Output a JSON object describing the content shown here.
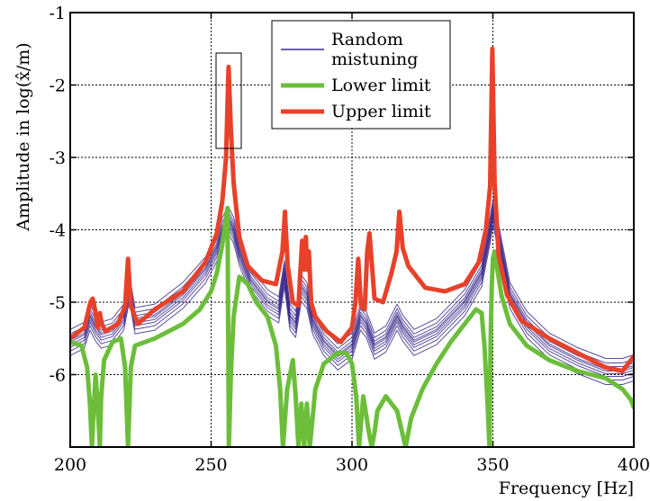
{
  "chart_data": {
    "type": "line",
    "xlabel": "Frequency [Hz]",
    "ylabel": "Amplitude in log(x̂/m)",
    "xlim": [
      200,
      400
    ],
    "ylim": [
      -7,
      -1
    ],
    "x_ticks": [
      "200",
      "250",
      "300",
      "350",
      "400"
    ],
    "y_ticks": [
      "-1",
      "-2",
      "-3",
      "-4",
      "-5",
      "-6"
    ],
    "grid": true,
    "legend_position": "top-right",
    "colors": {
      "random": "#3b2a8c",
      "lower": "#6cbe3a",
      "upper": "#e8412a"
    },
    "series": [
      {
        "name": "Random mistuning",
        "key": "random",
        "style": "thin-band",
        "x": [
          200,
          205,
          207,
          209,
          211,
          215,
          219,
          221,
          223,
          230,
          240,
          248,
          252,
          254,
          256,
          258,
          260,
          264,
          270,
          274,
          276,
          278,
          280,
          282,
          284,
          286,
          290,
          295,
          300,
          303,
          305,
          308,
          312,
          316,
          318,
          322,
          330,
          340,
          346,
          349,
          350,
          352,
          356,
          362,
          370,
          380,
          390,
          396,
          400
        ],
        "values": [
          -5.55,
          -5.45,
          -5.2,
          -5.35,
          -5.45,
          -5.4,
          -5.2,
          -4.8,
          -5.25,
          -5.2,
          -4.9,
          -4.55,
          -4.25,
          -4.0,
          -3.85,
          -4.0,
          -4.3,
          -4.7,
          -5.0,
          -5.1,
          -4.6,
          -5.2,
          -5.3,
          -4.8,
          -4.9,
          -5.25,
          -5.55,
          -5.75,
          -5.6,
          -5.2,
          -5.3,
          -5.6,
          -5.5,
          -5.2,
          -5.35,
          -5.55,
          -5.4,
          -5.0,
          -4.6,
          -4.0,
          -3.75,
          -4.1,
          -4.9,
          -5.3,
          -5.6,
          -5.8,
          -5.95,
          -5.95,
          -5.9
        ]
      },
      {
        "name": "Lower limit",
        "key": "lower",
        "x": [
          200,
          204,
          206,
          207,
          207.7,
          208.3,
          209,
          210,
          210.5,
          211,
          212,
          215,
          218,
          219.5,
          220.5,
          221.5,
          223,
          230,
          240,
          246,
          250,
          252,
          254,
          255,
          255.8,
          256.3,
          257,
          258,
          260,
          263,
          266,
          270,
          273,
          274.5,
          275.5,
          277,
          279,
          280,
          281,
          282,
          283,
          284,
          285,
          287,
          290,
          295,
          298,
          300,
          301.5,
          302.5,
          304,
          306,
          307,
          308,
          309,
          312,
          316,
          319,
          321,
          325,
          330,
          335,
          340,
          344,
          346,
          347,
          348,
          348.8,
          349.2,
          349.6,
          350,
          350.6,
          351.2,
          353,
          356,
          362,
          370,
          380,
          390,
          396,
          399,
          400
        ],
        "values": [
          -5.55,
          -5.6,
          -5.9,
          -6.4,
          -7.0,
          -6.5,
          -6.0,
          -6.6,
          -7.0,
          -6.3,
          -5.8,
          -5.55,
          -5.5,
          -5.9,
          -7.0,
          -5.9,
          -5.6,
          -5.5,
          -5.3,
          -5.1,
          -4.85,
          -4.6,
          -4.2,
          -3.9,
          -3.7,
          -7.0,
          -6.0,
          -5.2,
          -4.65,
          -4.75,
          -5.0,
          -5.2,
          -5.6,
          -6.2,
          -7.0,
          -6.2,
          -5.8,
          -6.3,
          -7.0,
          -6.4,
          -7.0,
          -6.4,
          -7.0,
          -6.2,
          -5.85,
          -5.7,
          -5.7,
          -5.85,
          -6.3,
          -7.0,
          -6.3,
          -6.8,
          -7.0,
          -6.8,
          -6.5,
          -6.3,
          -6.5,
          -7.0,
          -6.6,
          -6.2,
          -5.85,
          -5.55,
          -5.3,
          -5.1,
          -5.15,
          -5.6,
          -6.3,
          -7.0,
          -5.5,
          -4.8,
          -4.4,
          -4.3,
          -4.45,
          -4.9,
          -5.3,
          -5.6,
          -5.8,
          -5.95,
          -6.05,
          -6.2,
          -6.35,
          -6.45
        ]
      },
      {
        "name": "Upper limit",
        "key": "upper",
        "x": [
          200,
          205,
          207.2,
          208,
          208.8,
          209.8,
          210.5,
          211.2,
          212.5,
          217,
          219.5,
          220.5,
          221.5,
          224,
          230,
          240,
          248,
          252,
          254,
          255.3,
          256.2,
          257,
          258,
          260,
          263,
          268,
          273,
          275.3,
          276.2,
          277.2,
          279,
          281,
          282.3,
          283,
          283.6,
          284.1,
          284.7,
          285.5,
          287,
          291,
          296,
          300,
          301.2,
          302.2,
          303.2,
          304.5,
          305.4,
          306.2,
          308,
          311,
          314,
          315.8,
          316.8,
          318,
          320,
          326,
          333,
          340,
          345,
          347.5,
          349,
          349.8,
          350.6,
          352,
          355,
          360,
          370,
          380,
          390,
          396,
          398,
          400
        ],
        "values": [
          -5.5,
          -5.35,
          -5.0,
          -4.95,
          -5.1,
          -5.35,
          -5.15,
          -5.3,
          -5.4,
          -5.3,
          -5.05,
          -4.4,
          -5.05,
          -5.3,
          -5.1,
          -4.85,
          -4.45,
          -4.05,
          -3.6,
          -3.0,
          -1.75,
          -2.6,
          -3.35,
          -4.1,
          -4.5,
          -4.7,
          -4.75,
          -4.3,
          -3.75,
          -4.5,
          -5.0,
          -5.05,
          -4.15,
          -4.55,
          -4.1,
          -4.55,
          -4.3,
          -5.0,
          -5.2,
          -5.4,
          -5.55,
          -5.35,
          -5.0,
          -4.4,
          -5.05,
          -5.1,
          -4.3,
          -4.05,
          -4.95,
          -5.0,
          -4.6,
          -4.3,
          -3.75,
          -4.25,
          -4.5,
          -4.8,
          -4.85,
          -4.75,
          -4.45,
          -4.0,
          -3.4,
          -1.5,
          -3.35,
          -4.35,
          -4.9,
          -5.25,
          -5.5,
          -5.7,
          -5.9,
          -5.95,
          -5.85,
          -5.75
        ]
      }
    ],
    "legend": [
      "Random",
      "mistuning",
      "Lower limit",
      "Upper limit"
    ]
  }
}
